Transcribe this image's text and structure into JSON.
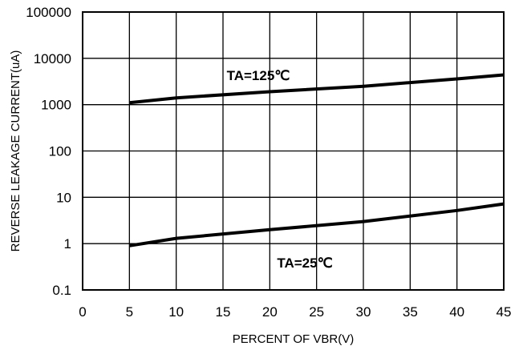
{
  "chart_data": {
    "type": "line",
    "title": "",
    "xlabel": "PERCENT OF VBR(V)",
    "ylabel": "REVERSE LEAKAGE CURRENT(uA)",
    "x_scale": "linear",
    "y_scale": "log",
    "xlim": [
      0,
      45
    ],
    "ylim": [
      0.1,
      100000
    ],
    "x_ticks": [
      "0",
      "5",
      "10",
      "15",
      "20",
      "25",
      "30",
      "35",
      "40",
      "45"
    ],
    "y_ticks": [
      "0.1",
      "1",
      "10",
      "100",
      "1000",
      "10000",
      "100000"
    ],
    "grid": true,
    "legend": "none",
    "series": [
      {
        "label": "TA=125℃",
        "x": [
          5,
          10,
          20,
          30,
          40,
          45
        ],
        "y": [
          1100,
          1400,
          1900,
          2500,
          3600,
          4400
        ]
      },
      {
        "label": "TA=25℃",
        "x": [
          5,
          10,
          20,
          30,
          40,
          45
        ],
        "y": [
          0.9,
          1.3,
          2.0,
          3.0,
          5.2,
          7.2
        ]
      }
    ]
  }
}
